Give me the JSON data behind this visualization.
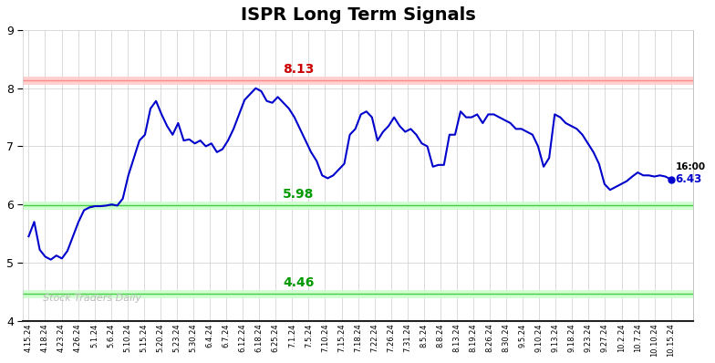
{
  "title": "ISPR Long Term Signals",
  "title_fontsize": 14,
  "title_fontweight": "bold",
  "background_color": "#ffffff",
  "plot_bg_color": "#ffffff",
  "grid_color": "#cccccc",
  "line_color": "#0000cc",
  "line_width": 1.5,
  "upper_band": 8.13,
  "lower_band": 4.46,
  "mid_band": 5.98,
  "upper_band_fill_color": "#ffcccc",
  "lower_band_fill_color": "#ccffcc",
  "upper_label_color": "#cc0000",
  "lower_label_color": "#009900",
  "mid_label_color": "#009900",
  "watermark": "Stock Traders Daily",
  "watermark_color": "#bbbbbb",
  "end_label": "16:00",
  "end_value": "6.43",
  "end_label_color": "#000000",
  "end_value_color": "#0000cc",
  "ylim": [
    4.0,
    9.0
  ],
  "yticks": [
    4,
    5,
    6,
    7,
    8,
    9
  ],
  "x_labels": [
    "4.15.24",
    "4.18.24",
    "4.23.24",
    "4.26.24",
    "5.1.24",
    "5.6.24",
    "5.10.24",
    "5.15.24",
    "5.20.24",
    "5.23.24",
    "5.30.24",
    "6.4.24",
    "6.7.24",
    "6.12.24",
    "6.18.24",
    "6.25.24",
    "7.1.24",
    "7.5.24",
    "7.10.24",
    "7.15.24",
    "7.18.24",
    "7.22.24",
    "7.26.24",
    "7.31.24",
    "8.5.24",
    "8.8.24",
    "8.13.24",
    "8.19.24",
    "8.26.24",
    "8.30.24",
    "9.5.24",
    "9.10.24",
    "9.13.24",
    "9.18.24",
    "9.23.24",
    "9.27.24",
    "10.2.24",
    "10.7.24",
    "10.10.24",
    "10.15.24"
  ],
  "y_values": [
    5.45,
    5.7,
    5.22,
    5.1,
    5.05,
    5.12,
    5.07,
    5.2,
    5.45,
    5.7,
    5.9,
    5.95,
    5.97,
    5.97,
    5.98,
    6.0,
    5.98,
    6.1,
    6.5,
    6.8,
    7.1,
    7.2,
    7.65,
    7.78,
    7.55,
    7.35,
    7.2,
    7.4,
    7.1,
    7.12,
    7.05,
    7.1,
    7.0,
    7.05,
    6.9,
    6.95,
    7.1,
    7.3,
    7.55,
    7.8,
    7.9,
    8.0,
    7.95,
    7.78,
    7.75,
    7.85,
    7.75,
    7.65,
    7.5,
    7.3,
    7.1,
    6.9,
    6.75,
    6.5,
    6.45,
    6.5,
    6.6,
    6.7,
    7.2,
    7.3,
    7.55,
    7.6,
    7.5,
    7.1,
    7.25,
    7.35,
    7.5,
    7.35,
    7.25,
    7.3,
    7.2,
    7.05,
    7.0,
    6.65,
    6.68,
    6.68,
    7.2,
    7.2,
    7.6,
    7.5,
    7.5,
    7.55,
    7.4,
    7.55,
    7.55,
    7.5,
    7.45,
    7.4,
    7.3,
    7.3,
    7.25,
    7.2,
    7.0,
    6.65,
    6.8,
    7.55,
    7.5,
    7.4,
    7.35,
    7.3,
    7.2,
    7.05,
    6.9,
    6.7,
    6.35,
    6.25,
    6.3,
    6.35,
    6.4,
    6.48,
    6.55,
    6.5,
    6.5,
    6.48,
    6.5,
    6.48,
    6.43
  ]
}
